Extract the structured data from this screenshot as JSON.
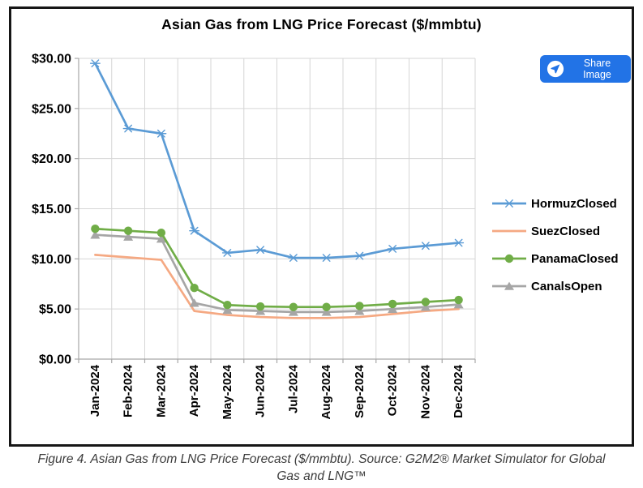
{
  "title": "Asian Gas from LNG Price Forecast ($/mmbtu)",
  "share_button": {
    "label": "Share Image",
    "icon": "paper-plane-icon",
    "color": "#2273e6"
  },
  "caption": "Figure 4. Asian Gas from LNG Price Forecast ($/mmbtu). Source: G2M2® Market Simulator for Global Gas and LNG™",
  "chart_data": {
    "type": "line",
    "title": "Asian Gas from LNG Price Forecast ($/mmbtu)",
    "categories": [
      "Jan-2024",
      "Feb-2024",
      "Mar-2024",
      "Apr-2024",
      "May-2024",
      "Jun-2024",
      "Jul-2024",
      "Aug-2024",
      "Sep-2024",
      "Oct-2024",
      "Nov-2024",
      "Dec-2024"
    ],
    "series": [
      {
        "name": "HormuzClosed",
        "color": "#5b9bd5",
        "marker": "star",
        "values": [
          29.5,
          23.0,
          22.5,
          12.8,
          10.6,
          10.9,
          10.1,
          10.1,
          10.3,
          11.0,
          11.3,
          11.6
        ]
      },
      {
        "name": "SuezClosed",
        "color": "#f5a983",
        "marker": "dash",
        "values": [
          10.4,
          10.15,
          9.9,
          4.8,
          4.4,
          4.2,
          4.1,
          4.1,
          4.2,
          4.5,
          4.8,
          5.0
        ]
      },
      {
        "name": "PanamaClosed",
        "color": "#70ad47",
        "marker": "circle",
        "values": [
          13.0,
          12.8,
          12.6,
          7.1,
          5.4,
          5.25,
          5.2,
          5.2,
          5.3,
          5.5,
          5.7,
          5.9
        ]
      },
      {
        "name": "CanalsOpen",
        "color": "#a6a6a6",
        "marker": "triangle",
        "values": [
          12.4,
          12.2,
          12.0,
          5.6,
          4.9,
          4.8,
          4.7,
          4.7,
          4.8,
          5.0,
          5.2,
          5.45
        ]
      }
    ],
    "ylim": [
      0,
      30
    ],
    "ytick_step": 5,
    "ytick_labels": [
      "$0.00",
      "$5.00",
      "$10.00",
      "$15.00",
      "$20.00",
      "$25.00",
      "$30.00"
    ],
    "grid": true,
    "legend_position": "right"
  }
}
